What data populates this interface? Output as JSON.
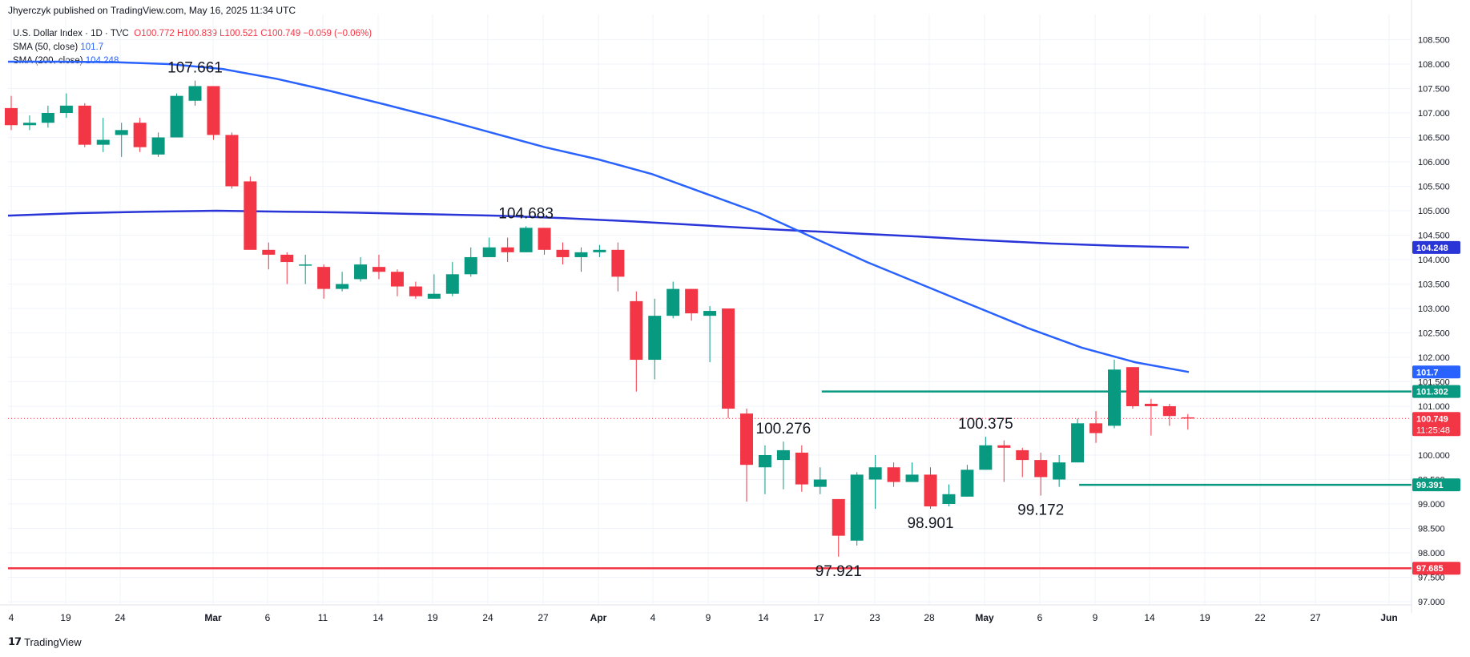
{
  "header": {
    "publisher": "Jhyerczyk published on TradingView.com, May 16, 2025 11:34 UTC"
  },
  "legend": {
    "symbol": "U.S. Dollar Index · 1D · TVC",
    "ohlc": {
      "O": "100.772",
      "H": "100.839",
      "L": "100.521",
      "C": "100.749",
      "change": "−0.059 (−0.06%)"
    },
    "sma50_label": "SMA (50, close)",
    "sma50_value": "101.7",
    "sma200_label": "SMA (200, close)",
    "sma200_value": "104.248"
  },
  "footer": {
    "brand": "TradingView"
  },
  "colors": {
    "up": "#089981",
    "down": "#f23645",
    "sma50": "#2962ff",
    "sma200": "#2a35d8",
    "support": "#f23645",
    "level": "#089981",
    "grid": "#f0f3fa",
    "axis_text": "#131722"
  },
  "chart_data": {
    "type": "candlestick",
    "ylim": [
      97.0,
      108.75
    ],
    "y_ticks": [
      "108.500",
      "108.000",
      "107.500",
      "107.000",
      "106.500",
      "106.000",
      "105.500",
      "105.000",
      "104.500",
      "104.000",
      "103.500",
      "103.000",
      "102.500",
      "102.000",
      "101.500",
      "101.000",
      "100.000",
      "99.500",
      "99.000",
      "98.500",
      "98.000",
      "97.500",
      "97.000"
    ],
    "x_ticks": [
      "4",
      "19",
      "24",
      "Mar",
      "6",
      "11",
      "14",
      "19",
      "24",
      "27",
      "Apr",
      "4",
      "9",
      "14",
      "17",
      "23",
      "28",
      "May",
      "6",
      "9",
      "14",
      "19",
      "22",
      "27",
      "Jun"
    ],
    "candles": [
      {
        "o": 107.1,
        "h": 107.35,
        "l": 106.65,
        "c": 106.75
      },
      {
        "o": 106.75,
        "h": 106.95,
        "l": 106.65,
        "c": 106.8
      },
      {
        "o": 106.8,
        "h": 107.15,
        "l": 106.7,
        "c": 107.0
      },
      {
        "o": 107.0,
        "h": 107.4,
        "l": 106.9,
        "c": 107.15
      },
      {
        "o": 107.15,
        "h": 107.2,
        "l": 106.3,
        "c": 106.35
      },
      {
        "o": 106.35,
        "h": 106.9,
        "l": 106.2,
        "c": 106.45
      },
      {
        "o": 106.55,
        "h": 106.8,
        "l": 106.1,
        "c": 106.65
      },
      {
        "o": 106.8,
        "h": 106.9,
        "l": 106.2,
        "c": 106.3
      },
      {
        "o": 106.15,
        "h": 106.6,
        "l": 106.1,
        "c": 106.5
      },
      {
        "o": 106.5,
        "h": 107.4,
        "l": 106.5,
        "c": 107.35
      },
      {
        "o": 107.25,
        "h": 107.661,
        "l": 107.15,
        "c": 107.55
      },
      {
        "o": 107.55,
        "h": 107.55,
        "l": 106.45,
        "c": 106.55
      },
      {
        "o": 106.55,
        "h": 106.6,
        "l": 105.45,
        "c": 105.5
      },
      {
        "o": 105.6,
        "h": 105.7,
        "l": 104.3,
        "c": 104.2
      },
      {
        "o": 104.2,
        "h": 104.35,
        "l": 103.8,
        "c": 104.1
      },
      {
        "o": 104.1,
        "h": 104.15,
        "l": 103.5,
        "c": 103.95
      },
      {
        "o": 103.9,
        "h": 104.1,
        "l": 103.5,
        "c": 103.9
      },
      {
        "o": 103.85,
        "h": 103.9,
        "l": 103.2,
        "c": 103.4
      },
      {
        "o": 103.4,
        "h": 103.75,
        "l": 103.35,
        "c": 103.5
      },
      {
        "o": 103.6,
        "h": 104.05,
        "l": 103.55,
        "c": 103.9
      },
      {
        "o": 103.85,
        "h": 104.1,
        "l": 103.6,
        "c": 103.75
      },
      {
        "o": 103.75,
        "h": 103.8,
        "l": 103.25,
        "c": 103.45
      },
      {
        "o": 103.45,
        "h": 103.55,
        "l": 103.2,
        "c": 103.25
      },
      {
        "o": 103.2,
        "h": 103.7,
        "l": 103.2,
        "c": 103.3
      },
      {
        "o": 103.3,
        "h": 103.95,
        "l": 103.25,
        "c": 103.7
      },
      {
        "o": 103.7,
        "h": 104.25,
        "l": 103.65,
        "c": 104.05
      },
      {
        "o": 104.05,
        "h": 104.45,
        "l": 104.05,
        "c": 104.25
      },
      {
        "o": 104.25,
        "h": 104.45,
        "l": 103.95,
        "c": 104.15
      },
      {
        "o": 104.15,
        "h": 104.683,
        "l": 104.15,
        "c": 104.65
      },
      {
        "o": 104.65,
        "h": 104.65,
        "l": 104.1,
        "c": 104.2
      },
      {
        "o": 104.2,
        "h": 104.35,
        "l": 103.9,
        "c": 104.05
      },
      {
        "o": 104.05,
        "h": 104.25,
        "l": 103.75,
        "c": 104.15
      },
      {
        "o": 104.15,
        "h": 104.3,
        "l": 104.05,
        "c": 104.2
      },
      {
        "o": 104.2,
        "h": 104.35,
        "l": 103.35,
        "c": 103.65
      },
      {
        "o": 103.15,
        "h": 103.35,
        "l": 101.3,
        "c": 101.95
      },
      {
        "o": 101.95,
        "h": 103.2,
        "l": 101.55,
        "c": 102.85
      },
      {
        "o": 102.85,
        "h": 103.55,
        "l": 102.8,
        "c": 103.4
      },
      {
        "o": 103.4,
        "h": 103.4,
        "l": 102.75,
        "c": 102.9
      },
      {
        "o": 102.85,
        "h": 103.05,
        "l": 101.9,
        "c": 102.95
      },
      {
        "o": 103.0,
        "h": 103.0,
        "l": 100.75,
        "c": 100.95
      },
      {
        "o": 100.85,
        "h": 100.95,
        "l": 99.05,
        "c": 99.8
      },
      {
        "o": 99.75,
        "h": 100.2,
        "l": 99.2,
        "c": 100.0
      },
      {
        "o": 99.9,
        "h": 100.276,
        "l": 99.3,
        "c": 100.1
      },
      {
        "o": 100.05,
        "h": 100.2,
        "l": 99.25,
        "c": 99.4
      },
      {
        "o": 99.35,
        "h": 99.75,
        "l": 99.2,
        "c": 99.5
      },
      {
        "o": 99.1,
        "h": 99.1,
        "l": 97.921,
        "c": 98.35
      },
      {
        "o": 98.25,
        "h": 99.65,
        "l": 98.15,
        "c": 99.6
      },
      {
        "o": 99.5,
        "h": 100.0,
        "l": 98.9,
        "c": 99.75
      },
      {
        "o": 99.75,
        "h": 99.85,
        "l": 99.35,
        "c": 99.45
      },
      {
        "o": 99.45,
        "h": 99.85,
        "l": 99.45,
        "c": 99.6
      },
      {
        "o": 99.6,
        "h": 99.75,
        "l": 98.901,
        "c": 98.95
      },
      {
        "o": 99.0,
        "h": 99.4,
        "l": 98.95,
        "c": 99.2
      },
      {
        "o": 99.15,
        "h": 99.8,
        "l": 99.15,
        "c": 99.7
      },
      {
        "o": 99.7,
        "h": 100.375,
        "l": 99.7,
        "c": 100.2
      },
      {
        "o": 100.2,
        "h": 100.3,
        "l": 99.45,
        "c": 100.15
      },
      {
        "o": 100.1,
        "h": 100.15,
        "l": 99.55,
        "c": 99.9
      },
      {
        "o": 99.9,
        "h": 100.05,
        "l": 99.172,
        "c": 99.55
      },
      {
        "o": 99.5,
        "h": 100.0,
        "l": 99.35,
        "c": 99.85
      },
      {
        "o": 99.85,
        "h": 100.75,
        "l": 99.85,
        "c": 100.65
      },
      {
        "o": 100.65,
        "h": 100.9,
        "l": 100.25,
        "c": 100.45
      },
      {
        "o": 100.6,
        "h": 101.95,
        "l": 100.55,
        "c": 101.75
      },
      {
        "o": 101.8,
        "h": 101.8,
        "l": 100.95,
        "c": 101.0
      },
      {
        "o": 101.05,
        "h": 101.15,
        "l": 100.4,
        "c": 101.0
      },
      {
        "o": 101.0,
        "h": 101.05,
        "l": 100.6,
        "c": 100.8
      },
      {
        "o": 100.772,
        "h": 100.839,
        "l": 100.521,
        "c": 100.749
      }
    ],
    "sma50": [
      108.05,
      108.05,
      108.04,
      108.0,
      107.9,
      107.7,
      107.45,
      107.18,
      106.9,
      106.6,
      106.3,
      106.05,
      105.75,
      105.35,
      104.95,
      104.45,
      103.95,
      103.5,
      103.05,
      102.6,
      102.2,
      101.9,
      101.7
    ],
    "sma200": [
      104.9,
      104.95,
      104.98,
      105.0,
      104.98,
      104.96,
      104.93,
      104.9,
      104.85,
      104.78,
      104.7,
      104.62,
      104.55,
      104.48,
      104.4,
      104.33,
      104.28,
      104.248
    ],
    "levels": [
      {
        "value": 101.302,
        "label": "101.302",
        "color": "#089981",
        "start_index": 44
      },
      {
        "value": 99.391,
        "label": "99.391",
        "color": "#089981",
        "start_index": 58
      },
      {
        "value": 97.685,
        "label": "97.685",
        "color": "#f23645",
        "start_index": 0
      }
    ],
    "last_price": {
      "value": 100.749,
      "label": "100.749",
      "countdown": "11:25:48"
    },
    "axis_badges": [
      {
        "value": 104.248,
        "label": "104.248",
        "color": "#2a35d8"
      },
      {
        "value": 101.7,
        "label": "101.7",
        "color": "#2962ff"
      }
    ],
    "annotations": [
      {
        "text": "107.661",
        "index": 10,
        "value": 107.661,
        "pos": "above"
      },
      {
        "text": "104.683",
        "index": 28,
        "value": 104.683,
        "pos": "above"
      },
      {
        "text": "100.276",
        "index": 42,
        "value": 100.276,
        "pos": "above"
      },
      {
        "text": "97.921",
        "index": 45,
        "value": 97.921,
        "pos": "below"
      },
      {
        "text": "98.901",
        "index": 50,
        "value": 98.901,
        "pos": "below"
      },
      {
        "text": "100.375",
        "index": 53,
        "value": 100.375,
        "pos": "above"
      },
      {
        "text": "99.172",
        "index": 56,
        "value": 99.172,
        "pos": "below"
      }
    ]
  }
}
